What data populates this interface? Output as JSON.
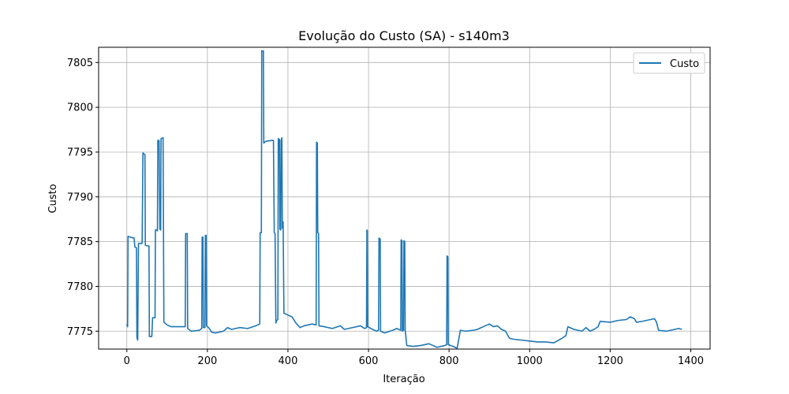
{
  "chart_data": {
    "type": "line",
    "title": "Evolução do Custo (SA) - s140m3",
    "xlabel": "Iteração",
    "ylabel": "Custo",
    "xlim": [
      -70,
      1448
    ],
    "ylim": [
      7773.0,
      7806.7
    ],
    "xticks": [
      0,
      200,
      400,
      600,
      800,
      1000,
      1200,
      1400
    ],
    "yticks": [
      7775,
      7780,
      7785,
      7790,
      7795,
      7800,
      7805
    ],
    "grid": true,
    "legend_position": "top-right",
    "colors": {
      "series": "#1f77b4"
    },
    "series": [
      {
        "name": "Custo",
        "points": [
          [
            0,
            7775.8
          ],
          [
            2,
            7775.5
          ],
          [
            3,
            7785.6
          ],
          [
            8,
            7785.5
          ],
          [
            18,
            7785.4
          ],
          [
            20,
            7784.4
          ],
          [
            24,
            7784.3
          ],
          [
            25,
            7774.3
          ],
          [
            27,
            7774.0
          ],
          [
            29,
            7784.8
          ],
          [
            38,
            7784.8
          ],
          [
            40,
            7794.9
          ],
          [
            45,
            7794.7
          ],
          [
            46,
            7784.6
          ],
          [
            55,
            7784.5
          ],
          [
            56,
            7774.4
          ],
          [
            62,
            7774.4
          ],
          [
            64,
            7776.5
          ],
          [
            70,
            7776.5
          ],
          [
            71,
            7786.3
          ],
          [
            74,
            7786.3
          ],
          [
            76,
            7786.2
          ],
          [
            77,
            7796.3
          ],
          [
            80,
            7796.3
          ],
          [
            82,
            7786.4
          ],
          [
            84,
            7786.3
          ],
          [
            85,
            7796.5
          ],
          [
            90,
            7796.6
          ],
          [
            92,
            7776.0
          ],
          [
            100,
            7775.7
          ],
          [
            110,
            7775.5
          ],
          [
            120,
            7775.5
          ],
          [
            145,
            7775.5
          ],
          [
            146,
            7785.9
          ],
          [
            150,
            7785.9
          ],
          [
            151,
            7775.3
          ],
          [
            160,
            7775.0
          ],
          [
            180,
            7775.1
          ],
          [
            186,
            7775.3
          ],
          [
            187,
            7785.5
          ],
          [
            189,
            7785.5
          ],
          [
            190,
            7775.4
          ],
          [
            194,
            7775.4
          ],
          [
            195,
            7785.7
          ],
          [
            197,
            7785.7
          ],
          [
            198,
            7775.6
          ],
          [
            205,
            7775.3
          ],
          [
            210,
            7774.9
          ],
          [
            220,
            7774.8
          ],
          [
            240,
            7775.0
          ],
          [
            250,
            7775.4
          ],
          [
            260,
            7775.2
          ],
          [
            280,
            7775.4
          ],
          [
            300,
            7775.3
          ],
          [
            320,
            7775.6
          ],
          [
            330,
            7775.8
          ],
          [
            331,
            7786.0
          ],
          [
            334,
            7786.0
          ],
          [
            335,
            7806.3
          ],
          [
            339,
            7806.3
          ],
          [
            340,
            7796.0
          ],
          [
            345,
            7796.2
          ],
          [
            360,
            7796.3
          ],
          [
            364,
            7796.3
          ],
          [
            366,
            7786.0
          ],
          [
            368,
            7785.9
          ],
          [
            370,
            7775.9
          ],
          [
            372,
            7776.2
          ],
          [
            375,
            7776.3
          ],
          [
            376,
            7796.5
          ],
          [
            379,
            7796.4
          ],
          [
            380,
            7786.4
          ],
          [
            382,
            7786.3
          ],
          [
            383,
            7796.3
          ],
          [
            385,
            7796.6
          ],
          [
            386,
            7786.5
          ],
          [
            388,
            7787.2
          ],
          [
            390,
            7777.0
          ],
          [
            400,
            7776.8
          ],
          [
            410,
            7776.6
          ],
          [
            420,
            7775.9
          ],
          [
            430,
            7775.4
          ],
          [
            440,
            7775.6
          ],
          [
            460,
            7775.8
          ],
          [
            470,
            7775.7
          ],
          [
            471,
            7796.1
          ],
          [
            473,
            7796.0
          ],
          [
            474,
            7786.0
          ],
          [
            476,
            7785.9
          ],
          [
            477,
            7775.6
          ],
          [
            490,
            7775.5
          ],
          [
            510,
            7775.3
          ],
          [
            530,
            7775.6
          ],
          [
            540,
            7775.2
          ],
          [
            560,
            7775.4
          ],
          [
            580,
            7775.6
          ],
          [
            590,
            7775.3
          ],
          [
            595,
            7775.4
          ],
          [
            596,
            7786.3
          ],
          [
            597,
            7786.2
          ],
          [
            598,
            7775.5
          ],
          [
            610,
            7775.2
          ],
          [
            620,
            7775.0
          ],
          [
            625,
            7775.1
          ],
          [
            626,
            7785.4
          ],
          [
            629,
            7785.3
          ],
          [
            630,
            7775.0
          ],
          [
            640,
            7774.8
          ],
          [
            660,
            7775.1
          ],
          [
            670,
            7775.3
          ],
          [
            680,
            7775.1
          ],
          [
            681,
            7785.2
          ],
          [
            683,
            7785.1
          ],
          [
            684,
            7775.0
          ],
          [
            687,
            7775.1
          ],
          [
            688,
            7785.1
          ],
          [
            690,
            7785.0
          ],
          [
            691,
            7775.1
          ],
          [
            695,
            7773.4
          ],
          [
            710,
            7773.3
          ],
          [
            730,
            7773.4
          ],
          [
            750,
            7773.6
          ],
          [
            760,
            7773.4
          ],
          [
            770,
            7773.2
          ],
          [
            780,
            7773.3
          ],
          [
            790,
            7773.4
          ],
          [
            794,
            7773.5
          ],
          [
            795,
            7783.4
          ],
          [
            797,
            7783.3
          ],
          [
            798,
            7773.5
          ],
          [
            810,
            7773.3
          ],
          [
            820,
            7773.1
          ],
          [
            828,
            7775.1
          ],
          [
            840,
            7775.0
          ],
          [
            860,
            7775.1
          ],
          [
            870,
            7775.2
          ],
          [
            880,
            7775.4
          ],
          [
            890,
            7775.6
          ],
          [
            900,
            7775.8
          ],
          [
            910,
            7775.5
          ],
          [
            920,
            7775.6
          ],
          [
            930,
            7775.2
          ],
          [
            940,
            7775.0
          ],
          [
            950,
            7774.2
          ],
          [
            960,
            7774.1
          ],
          [
            980,
            7774.0
          ],
          [
            1000,
            7773.9
          ],
          [
            1020,
            7773.8
          ],
          [
            1040,
            7773.8
          ],
          [
            1060,
            7773.7
          ],
          [
            1080,
            7774.2
          ],
          [
            1090,
            7774.5
          ],
          [
            1095,
            7775.5
          ],
          [
            1110,
            7775.2
          ],
          [
            1130,
            7775.0
          ],
          [
            1140,
            7775.4
          ],
          [
            1150,
            7775.0
          ],
          [
            1160,
            7775.2
          ],
          [
            1170,
            7775.5
          ],
          [
            1175,
            7776.1
          ],
          [
            1200,
            7776.0
          ],
          [
            1220,
            7776.2
          ],
          [
            1240,
            7776.3
          ],
          [
            1250,
            7776.6
          ],
          [
            1260,
            7776.4
          ],
          [
            1265,
            7776.0
          ],
          [
            1280,
            7776.1
          ],
          [
            1300,
            7776.3
          ],
          [
            1310,
            7776.4
          ],
          [
            1315,
            7776.0
          ],
          [
            1320,
            7775.1
          ],
          [
            1340,
            7775.0
          ],
          [
            1360,
            7775.2
          ],
          [
            1370,
            7775.3
          ],
          [
            1378,
            7775.2
          ]
        ]
      }
    ]
  }
}
